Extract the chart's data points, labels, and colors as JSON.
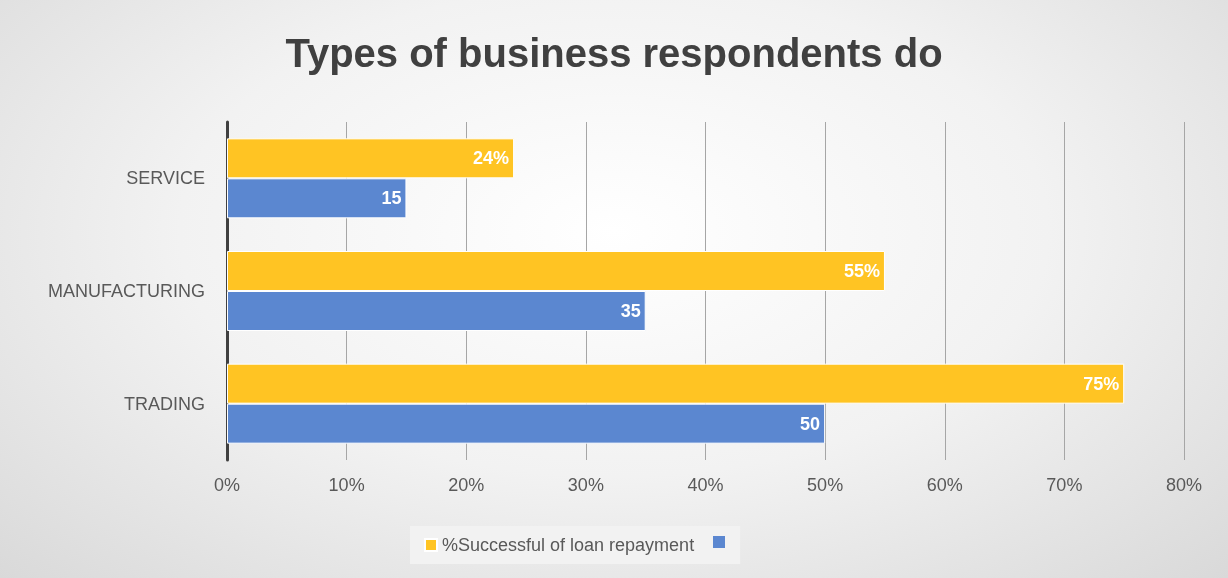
{
  "chart_data": {
    "type": "bar",
    "title": "Types of business respondents do",
    "orientation": "horizontal",
    "categories": [
      "SERVICE",
      "MANUFACTURING",
      "TRADING"
    ],
    "series": [
      {
        "name": "%Successful of loan repayment",
        "color": "#ffc423",
        "values": [
          24,
          55,
          75
        ],
        "value_labels": [
          "24%",
          "55%",
          "75%"
        ]
      },
      {
        "color": "#5b87d0",
        "values": [
          15,
          35,
          50
        ],
        "value_labels": [
          "15",
          "35",
          "50"
        ]
      }
    ],
    "xlim": [
      0,
      80
    ],
    "xticks": [
      {
        "value": 0,
        "label": "0%"
      },
      {
        "value": 10,
        "label": "10%"
      },
      {
        "value": 20,
        "label": "20%"
      },
      {
        "value": 30,
        "label": "30%"
      },
      {
        "value": 40,
        "label": "40%"
      },
      {
        "value": 50,
        "label": "50%"
      },
      {
        "value": 60,
        "label": "60%"
      },
      {
        "value": 70,
        "label": "70%"
      },
      {
        "value": 80,
        "label": "80%"
      }
    ],
    "grid": "x",
    "legend": "bottom"
  }
}
